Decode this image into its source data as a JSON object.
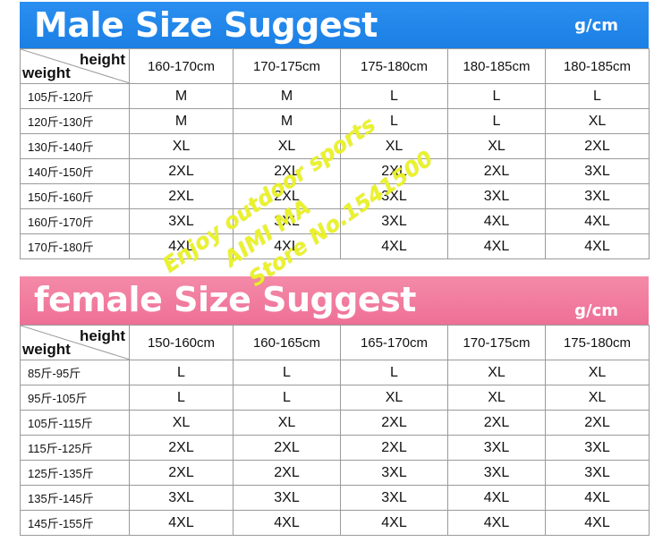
{
  "male": {
    "title": "Male Size Suggest",
    "unit": "g/cm",
    "height_label": "height",
    "weight_label": "weight",
    "heights": [
      "160-170cm",
      "170-175cm",
      "175-180cm",
      "180-185cm",
      "180-185cm"
    ],
    "rows": [
      {
        "weight": "105斤-120斤",
        "sizes": [
          "M",
          "M",
          "L",
          "L",
          "L"
        ]
      },
      {
        "weight": "120斤-130斤",
        "sizes": [
          "M",
          "M",
          "L",
          "L",
          "XL"
        ]
      },
      {
        "weight": "130斤-140斤",
        "sizes": [
          "XL",
          "XL",
          "XL",
          "XL",
          "2XL"
        ]
      },
      {
        "weight": "140斤-150斤",
        "sizes": [
          "2XL",
          "2XL",
          "2XL",
          "2XL",
          "3XL"
        ]
      },
      {
        "weight": "150斤-160斤",
        "sizes": [
          "2XL",
          "2XL",
          "3XL",
          "3XL",
          "3XL"
        ]
      },
      {
        "weight": "160斤-170斤",
        "sizes": [
          "3XL",
          "3XL",
          "3XL",
          "4XL",
          "4XL"
        ]
      },
      {
        "weight": "170斤-180斤",
        "sizes": [
          "4XL",
          "4XL",
          "4XL",
          "4XL",
          "4XL"
        ]
      }
    ]
  },
  "female": {
    "title": "female Size Suggest",
    "unit": "g/cm",
    "height_label": "height",
    "weight_label": "weight",
    "heights": [
      "150-160cm",
      "160-165cm",
      "165-170cm",
      "170-175cm",
      "175-180cm"
    ],
    "rows": [
      {
        "weight": "85斤-95斤",
        "sizes": [
          "L",
          "L",
          "L",
          "XL",
          "XL"
        ]
      },
      {
        "weight": "95斤-105斤",
        "sizes": [
          "L",
          "L",
          "XL",
          "XL",
          "XL"
        ]
      },
      {
        "weight": "105斤-115斤",
        "sizes": [
          "XL",
          "XL",
          "2XL",
          "2XL",
          "2XL"
        ]
      },
      {
        "weight": "115斤-125斤",
        "sizes": [
          "2XL",
          "2XL",
          "2XL",
          "3XL",
          "3XL"
        ]
      },
      {
        "weight": "125斤-135斤",
        "sizes": [
          "2XL",
          "2XL",
          "3XL",
          "3XL",
          "3XL"
        ]
      },
      {
        "weight": "135斤-145斤",
        "sizes": [
          "3XL",
          "3XL",
          "3XL",
          "4XL",
          "4XL"
        ]
      },
      {
        "weight": "145斤-155斤",
        "sizes": [
          "4XL",
          "4XL",
          "4XL",
          "4XL",
          "4XL"
        ]
      }
    ]
  },
  "watermark": {
    "line1": "Enjoy outdoor sports",
    "line2": "AIMI MA",
    "line3": "Store No.1541500"
  }
}
